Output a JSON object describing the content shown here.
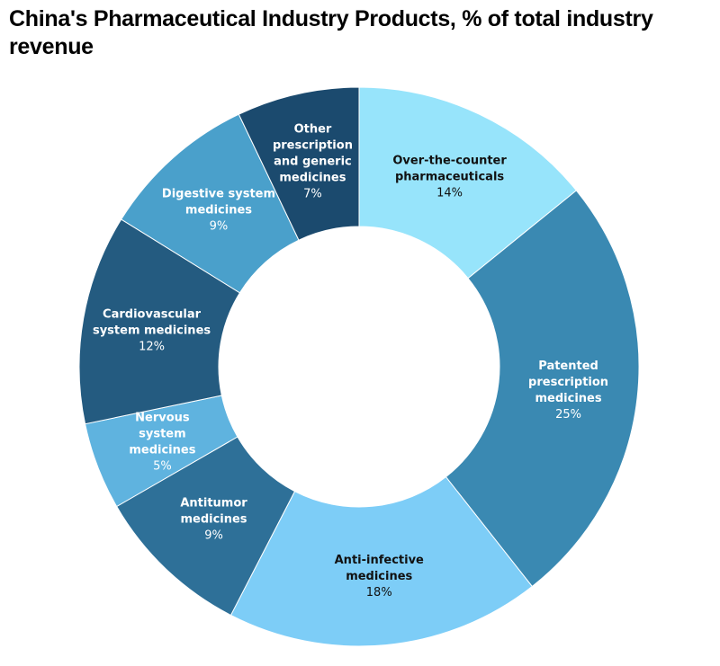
{
  "chart_data": {
    "type": "pie",
    "subtype": "donut",
    "title": "China's Pharmaceutical Industry Products, % of total industry revenue",
    "unit": "%",
    "start": "top",
    "direction": "clockwise",
    "slices": [
      {
        "label": [
          "Over-the-counter",
          "pharmaceuticals"
        ],
        "value": 14,
        "value_label": "14%",
        "color": "#97e4fb",
        "text_color": "#111111"
      },
      {
        "label": [
          "Patented",
          "prescription",
          "medicines"
        ],
        "value": 25,
        "value_label": "25%",
        "color": "#3a89b2",
        "text_color": "#ffffff"
      },
      {
        "label": [
          "Anti-infective",
          "medicines"
        ],
        "value": 18,
        "value_label": "18%",
        "color": "#7dcdf7",
        "text_color": "#111111"
      },
      {
        "label": [
          "Antitumor",
          "medicines"
        ],
        "value": 9,
        "value_label": "9%",
        "color": "#2e7098",
        "text_color": "#ffffff"
      },
      {
        "label": [
          "Nervous",
          "system",
          "medicines"
        ],
        "value": 5,
        "value_label": "5%",
        "color": "#5fb3df",
        "text_color": "#ffffff"
      },
      {
        "label": [
          "Cardiovascular",
          "system medicines"
        ],
        "value": 12,
        "value_label": "12%",
        "color": "#245b80",
        "text_color": "#ffffff"
      },
      {
        "label": [
          "Digestive system",
          "medicines"
        ],
        "value": 9,
        "value_label": "9%",
        "color": "#4aa0cb",
        "text_color": "#ffffff"
      },
      {
        "label": [
          "Other",
          "prescription",
          "and generic",
          "medicines"
        ],
        "value": 7,
        "value_label": "7%",
        "color": "#1b4a6e",
        "text_color": "#ffffff"
      }
    ]
  }
}
